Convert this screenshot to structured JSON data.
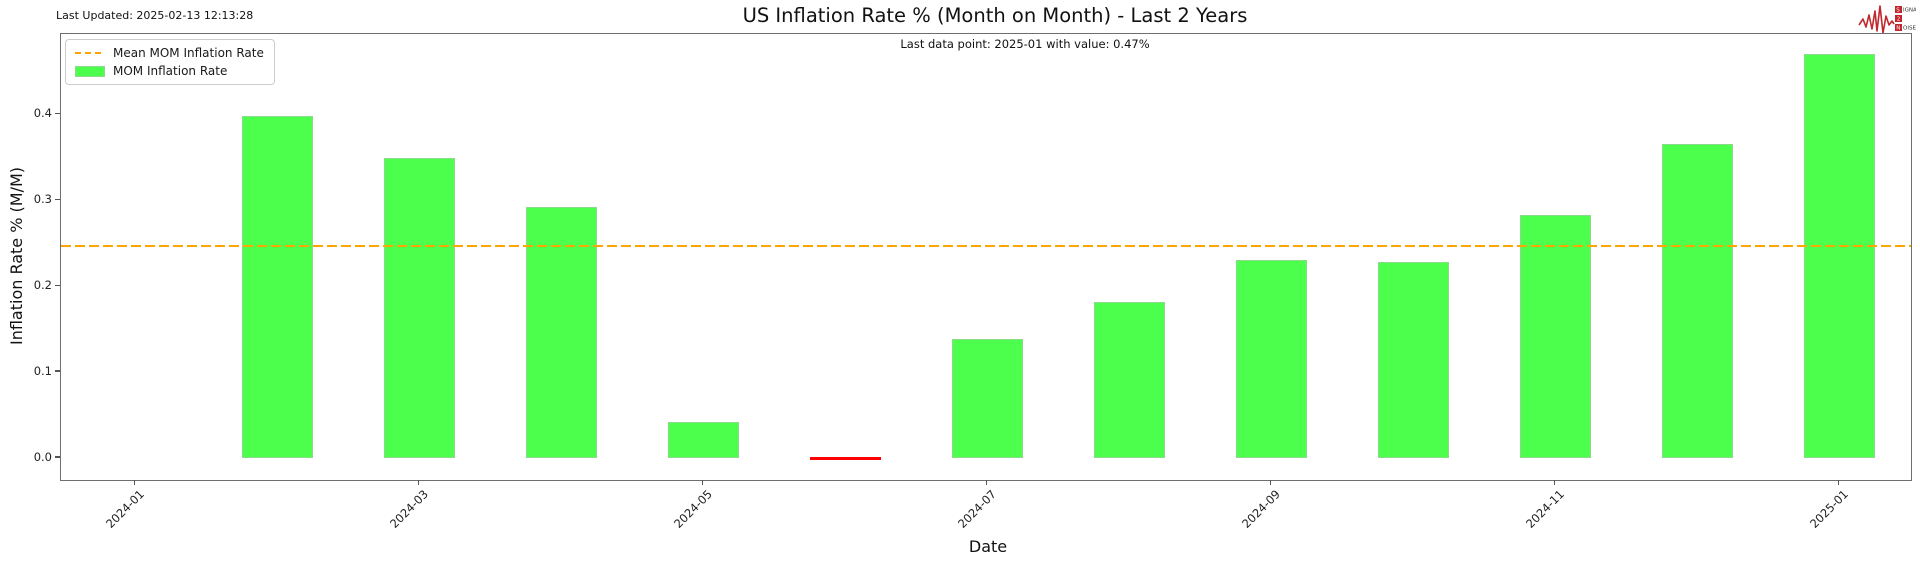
{
  "header": {
    "last_updated": "Last Updated: 2025-02-13 12:13:28",
    "annotation": "Last data point: 2025-01 with value: 0.47%"
  },
  "logo": {
    "rows": [
      "SIGNAL",
      "2",
      "NOISE"
    ],
    "color": "#c1272d"
  },
  "legend": {
    "items": [
      {
        "label": "Mean MOM Inflation Rate",
        "marker": "dashed-line"
      },
      {
        "label": "MOM Inflation Rate",
        "marker": "patch"
      }
    ]
  },
  "chart_data": {
    "type": "bar",
    "title": "US Inflation Rate % (Month on Month) - Last 2 Years",
    "xlabel": "Date",
    "ylabel": "Inflation Rate % (M/M)",
    "categories": [
      "2024-01",
      "2024-02",
      "2024-03",
      "2024-04",
      "2024-05",
      "2024-06",
      "2024-07",
      "2024-08",
      "2024-09",
      "2024-10",
      "2024-11",
      "2024-12",
      "2025-01"
    ],
    "values": [
      null,
      0.398,
      0.349,
      0.292,
      0.042,
      0.0,
      0.139,
      0.182,
      0.231,
      0.228,
      0.283,
      0.366,
      0.47
    ],
    "mean_value": 0.248,
    "y_ticks": [
      0,
      0.1,
      0.2,
      0.3,
      0.4
    ],
    "y_tick_labels": [
      "0.0",
      "0.1",
      "0.2",
      "0.3",
      "0.4"
    ],
    "x_tick_months": [
      "2024-01",
      "2024-03",
      "2024-05",
      "2024-07",
      "2024-09",
      "2024-11",
      "2025-01"
    ],
    "ylim": [
      -0.023,
      0.493
    ],
    "grid": false,
    "legend_position": "upper left",
    "bar_color": "#4dff4d",
    "bar_edge_color": "#8cd98c",
    "zero_bar_color": "#ff0000",
    "mean_line_color": "#ffa500",
    "annotation": "Last data point: 2025-01 with value: 0.47%"
  }
}
